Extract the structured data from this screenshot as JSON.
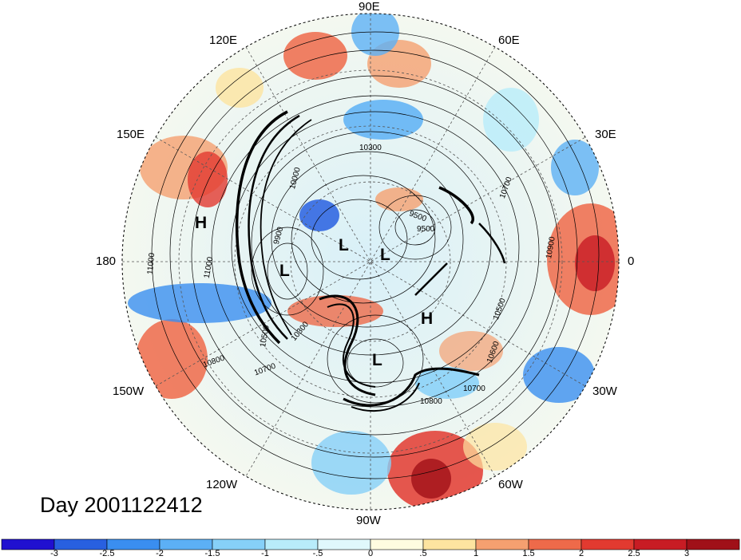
{
  "title": "Day 2001122412",
  "longitude_labels": [
    "90E",
    "120E",
    "60E",
    "150E",
    "30E",
    "180",
    "0",
    "150W",
    "30W",
    "120W",
    "60W",
    "90W"
  ],
  "pressure_centers": [
    "H",
    "H",
    "L",
    "L",
    "L",
    "L"
  ],
  "contour_labels": [
    "10300",
    "10700",
    "10900",
    "9500",
    "9500",
    "9900",
    "10000",
    "11000",
    "11000",
    "10500",
    "10300",
    "10500",
    "10800",
    "10700",
    "10600",
    "10800",
    "10700"
  ],
  "colorbar": {
    "ticks": [
      "-3",
      "-2.5",
      "-2",
      "-1.5",
      "-1",
      "-.5",
      "0",
      ".5",
      "1",
      "1.5",
      "2",
      "2.5",
      "3"
    ],
    "colors": [
      "#2010d0",
      "#2860e0",
      "#3a8ef0",
      "#5cb0f5",
      "#86d0f8",
      "#b8ecfa",
      "#e0f8fc",
      "#fffce0",
      "#fde4a0",
      "#f5a070",
      "#ee6a4a",
      "#e23a30",
      "#c81c24",
      "#a01018"
    ]
  }
}
